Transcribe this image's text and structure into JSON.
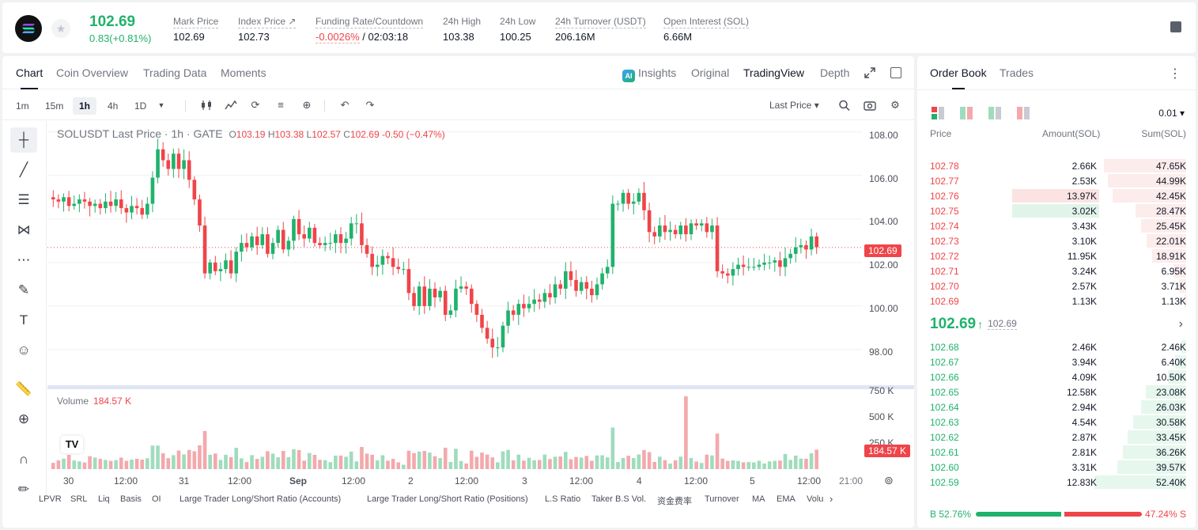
{
  "header": {
    "last_price": "102.69",
    "change": "0.83(+0.81%)",
    "stats": [
      {
        "label": "Mark Price",
        "value": "102.69"
      },
      {
        "label": "Index Price ↗",
        "value": "102.73"
      },
      {
        "label": "Funding Rate/Countdown",
        "value_red": "-0.0026%",
        "value": " / 02:03:18"
      },
      {
        "label": "24h High",
        "value": "103.38"
      },
      {
        "label": "24h Low",
        "value": "100.25"
      },
      {
        "label": "24h Turnover (USDT)",
        "value": "206.16M"
      },
      {
        "label": "Open Interest (SOL)",
        "value": "6.66M"
      }
    ]
  },
  "chart_tabs": [
    "Chart",
    "Coin Overview",
    "Trading Data",
    "Moments"
  ],
  "view_tabs": {
    "insights": "Insights",
    "original": "Original",
    "tradingview": "TradingView",
    "depth": "Depth",
    "ai_badge": "AI"
  },
  "timeframes": [
    "1m",
    "15m",
    "1h",
    "4h",
    "1D"
  ],
  "price_source": "Last Price ▾",
  "legend": {
    "symbol": "SOLUSDT Last Price · 1h · GATE",
    "o_lbl": "O",
    "o": "103.19",
    "h_lbl": "H",
    "h": "103.38",
    "l_lbl": "L",
    "l": "102.57",
    "c_lbl": "C",
    "c": "102.69",
    "chg": "-0.50 (−0.47%)"
  },
  "volume_legend": {
    "label": "Volume",
    "value": "184.57 K"
  },
  "price_tag": "102.69",
  "volume_tag": "184.57 K",
  "tv_logo": "TV",
  "y_axis": [
    "108.00",
    "106.00",
    "104.00",
    "102.00",
    "100.00",
    "98.00"
  ],
  "vol_axis": [
    "750 K",
    "500 K",
    "250 K"
  ],
  "x_axis": [
    "30",
    "12:00",
    "31",
    "12:00",
    "Sep",
    "12:00",
    "2",
    "12:00",
    "3",
    "12:00",
    "4",
    "12:00",
    "5",
    "12:00",
    "21:00"
  ],
  "indicators": [
    "LPVR",
    "SRL",
    "Liq",
    "Basis",
    "OI",
    "Large Trader Long/Short Ratio (Accounts)",
    "Large Trader Long/Short Ratio (Positions)",
    "L.S Ratio",
    "Taker B.S Vol.",
    "资金费率",
    "Turnover",
    "MA",
    "EMA",
    "Volu"
  ],
  "chart_data": {
    "type": "candlestick",
    "title": "SOLUSDT Last Price · 1h · GATE",
    "ylim": [
      96.8,
      108.5
    ],
    "x_ticks": [
      "30",
      "12:00",
      "31",
      "12:00",
      "Sep",
      "12:00",
      "2",
      "12:00",
      "3",
      "12:00",
      "4",
      "12:00",
      "5",
      "12:00",
      "21:00"
    ],
    "close": [
      104.9,
      104.8,
      105.0,
      104.6,
      104.7,
      104.9,
      104.8,
      104.6,
      104.7,
      104.5,
      104.8,
      104.6,
      104.9,
      104.5,
      104.3,
      104.6,
      104.5,
      104.2,
      104.7,
      105.9,
      107.2,
      106.7,
      106.3,
      107.0,
      106.3,
      106.7,
      105.8,
      104.9,
      103.7,
      101.5,
      102.0,
      101.6,
      101.7,
      102.1,
      101.5,
      102.5,
      102.9,
      102.7,
      103.2,
      102.8,
      103.3,
      102.4,
      102.9,
      103.5,
      102.6,
      103.0,
      104.0,
      103.3,
      103.1,
      103.6,
      102.9,
      102.8,
      102.9,
      102.9,
      103.3,
      102.9,
      103.1,
      103.8,
      103.8,
      102.8,
      102.4,
      101.8,
      101.9,
      102.3,
      102.2,
      101.8,
      101.7,
      101.7,
      100.6,
      100.0,
      100.9,
      100.0,
      100.8,
      100.4,
      100.7,
      99.6,
      99.8,
      100.8,
      100.9,
      100.8,
      100.1,
      99.6,
      99.0,
      98.5,
      98.1,
      98.1,
      99.1,
      99.8,
      99.6,
      100.1,
      99.9,
      100.1,
      100.3,
      100.2,
      100.6,
      100.4,
      101.0,
      100.8,
      101.6,
      101.2,
      100.7,
      101.1,
      100.8,
      100.5,
      101.0,
      101.5,
      101.8,
      104.7,
      104.7,
      105.2,
      104.7,
      104.8,
      105.2,
      104.4,
      103.4,
      103.2,
      103.7,
      103.4,
      103.5,
      103.3,
      103.7,
      103.3,
      103.8,
      103.7,
      103.8,
      103.4,
      103.7,
      101.6,
      101.5,
      101.4,
      101.7,
      101.9,
      101.8,
      101.8,
      101.8,
      101.9,
      102.0,
      102.0,
      102.1,
      101.8,
      102.2,
      102.4,
      102.7,
      102.8,
      102.6,
      103.2,
      102.7
    ],
    "volume_max_k": 750,
    "last_volume": "184.57 K"
  },
  "order_book": {
    "tabs": [
      "Order Book",
      "Trades"
    ],
    "precision": "0.01 ▾",
    "headers": [
      "Price",
      "Amount(SOL)",
      "Sum(SOL)"
    ],
    "asks": [
      {
        "price": "102.78",
        "amount": "2.66K",
        "sum": "47.65K",
        "depth": 0.9
      },
      {
        "price": "102.77",
        "amount": "2.53K",
        "sum": "44.99K",
        "depth": 0.85
      },
      {
        "price": "102.76",
        "amount": "13.97K",
        "sum": "42.45K",
        "depth": 0.8
      },
      {
        "price": "102.75",
        "amount": "3.02K",
        "sum": "28.47K",
        "depth": 0.55
      },
      {
        "price": "102.74",
        "amount": "3.43K",
        "sum": "25.45K",
        "depth": 0.49
      },
      {
        "price": "102.73",
        "amount": "3.10K",
        "sum": "22.01K",
        "depth": 0.43
      },
      {
        "price": "102.72",
        "amount": "11.95K",
        "sum": "18.91K",
        "depth": 0.37
      },
      {
        "price": "102.71",
        "amount": "3.24K",
        "sum": "6.95K",
        "depth": 0.14
      },
      {
        "price": "102.70",
        "amount": "2.57K",
        "sum": "3.71K",
        "depth": 0.08
      },
      {
        "price": "102.69",
        "amount": "1.13K",
        "sum": "1.13K",
        "depth": 0.02
      }
    ],
    "mid_price": "102.69",
    "mid_arrow": "↑",
    "mark_price": "102.69",
    "bids": [
      {
        "price": "102.68",
        "amount": "2.46K",
        "sum": "2.46K",
        "depth": 0.05
      },
      {
        "price": "102.67",
        "amount": "3.94K",
        "sum": "6.40K",
        "depth": 0.12
      },
      {
        "price": "102.66",
        "amount": "4.09K",
        "sum": "10.50K",
        "depth": 0.2
      },
      {
        "price": "102.65",
        "amount": "12.58K",
        "sum": "23.08K",
        "depth": 0.44
      },
      {
        "price": "102.64",
        "amount": "2.94K",
        "sum": "26.03K",
        "depth": 0.49
      },
      {
        "price": "102.63",
        "amount": "4.54K",
        "sum": "30.58K",
        "depth": 0.58
      },
      {
        "price": "102.62",
        "amount": "2.87K",
        "sum": "33.45K",
        "depth": 0.64
      },
      {
        "price": "102.61",
        "amount": "2.81K",
        "sum": "36.26K",
        "depth": 0.69
      },
      {
        "price": "102.60",
        "amount": "3.31K",
        "sum": "39.57K",
        "depth": 0.75
      },
      {
        "price": "102.59",
        "amount": "12.83K",
        "sum": "52.40K",
        "depth": 1.0
      }
    ],
    "buy_ratio": "B 52.76%",
    "sell_ratio": "47.24% S"
  },
  "colors": {
    "up": "#20b26c",
    "down": "#ef454a",
    "up_vol": "#9fdcbd",
    "down_vol": "#f3a9ac"
  }
}
